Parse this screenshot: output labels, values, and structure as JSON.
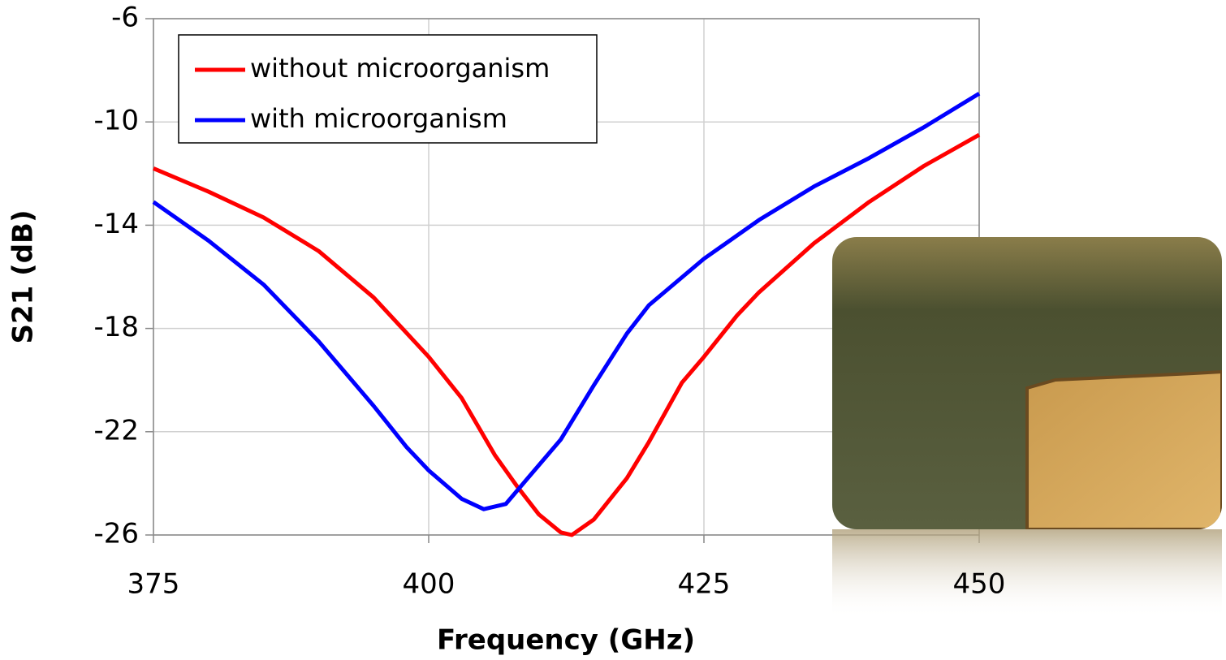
{
  "chart_data": {
    "type": "line",
    "xlabel": "Frequency (GHz)",
    "ylabel": "S21 (dB)",
    "xlim": [
      375,
      450
    ],
    "xticks": [
      375,
      400,
      425,
      450
    ],
    "ylim": [
      -26,
      -6
    ],
    "yticks": [
      -26,
      -22,
      -18,
      -14,
      -10,
      -6
    ],
    "grid": true,
    "legend": "upper left",
    "series": [
      {
        "name": "without microorganism",
        "color": "#ff0000",
        "x": [
          375,
          380,
          385,
          390,
          395,
          400,
          403,
          406,
          408,
          410,
          412,
          413,
          415,
          418,
          420,
          423,
          425,
          428,
          430,
          435,
          440,
          445,
          450
        ],
        "values": [
          -11.8,
          -12.7,
          -13.7,
          -15.0,
          -16.8,
          -19.1,
          -20.7,
          -22.9,
          -24.1,
          -25.2,
          -25.9,
          -26.0,
          -25.4,
          -23.8,
          -22.4,
          -20.1,
          -19.1,
          -17.5,
          -16.6,
          -14.7,
          -13.1,
          -11.7,
          -10.5
        ]
      },
      {
        "name": "with microorganism",
        "color": "#0000ff",
        "x": [
          375,
          380,
          385,
          390,
          395,
          398,
          400,
          403,
          405,
          407,
          409,
          412,
          415,
          418,
          420,
          425,
          430,
          435,
          440,
          445,
          450
        ],
        "values": [
          -13.1,
          -14.6,
          -16.3,
          -18.5,
          -21.0,
          -22.6,
          -23.5,
          -24.6,
          -25.0,
          -24.8,
          -23.8,
          -22.3,
          -20.2,
          -18.2,
          -17.1,
          -15.3,
          -13.8,
          -12.5,
          -11.4,
          -10.2,
          -8.9
        ]
      }
    ]
  }
}
